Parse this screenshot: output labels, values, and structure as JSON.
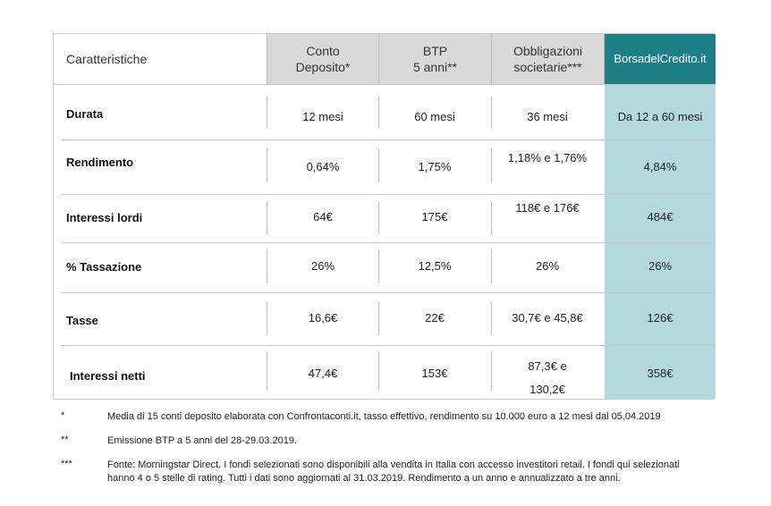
{
  "header": {
    "label": "Caratteristiche",
    "col1": "Conto\nDeposito*",
    "col2": "BTP\n5 anni**",
    "col3": "Obbligazioni\nsocietarie***",
    "col4": "BorsadelCredito.it"
  },
  "rows": [
    {
      "label": "Durata",
      "c1": "12 mesi",
      "c2": "60 mesi",
      "c3": "36 mesi",
      "c4": "Da 12 a 60 mesi"
    },
    {
      "label": "Rendimento",
      "c1": "0,64%",
      "c2": "1,75%",
      "c3": "1,18% e 1,76%",
      "c4": "4,84%"
    },
    {
      "label": "Interessi lordi",
      "c1": "64€",
      "c2": "175€",
      "c3": "118€ e 176€",
      "c4": "484€"
    },
    {
      "label": "% Tassazione",
      "c1": "26%",
      "c2": "12,5%",
      "c3": "26%",
      "c4": "26%"
    },
    {
      "label": "Tasse",
      "c1": "16,6€",
      "c2": "22€",
      "c3": "30,7€ e 45,8€",
      "c4": "126€"
    },
    {
      "label": "Interessi netti",
      "c1": "47,4€",
      "c2": "153€",
      "c3": "87,3€ e\n130,2€",
      "c4": "358€"
    }
  ],
  "notes": [
    {
      "mark": "*",
      "text": "Media di 15 conti deposito elaborata con Confrontaconti.it, tasso effettivo, rendimento su 10.000 euro a 12 mesi dal 05.04.2019"
    },
    {
      "mark": "**",
      "text": "Emissione BTP a 5 anni del 28-29.03.2019."
    },
    {
      "mark": "***",
      "text": "Fonte: Morningstar Direct. I fondi selezionati sono disponibili alla vendita in Italia con accesso investitori retail. I fondi qui selezionati hanno 4 o 5 stelle di rating. Tutti i dati sono aggiornati al 31.03.2019. Rendimento a un anno e annualizzato a tre anni."
    }
  ],
  "colors": {
    "brand": "#1f7f86",
    "brand_light": "#b3d9dc",
    "header_grey": "#d9d9d9"
  }
}
